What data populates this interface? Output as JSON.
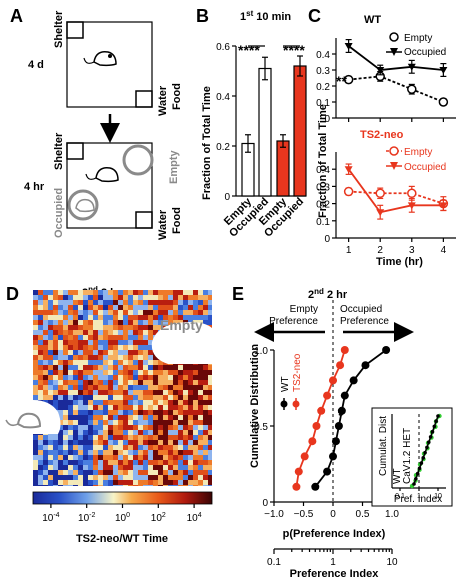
{
  "panels": {
    "A": {
      "letter": "A",
      "top_box": {
        "duration": "4 d",
        "shelter": "Shelter",
        "water": "Water",
        "food": "Food"
      },
      "bottom_box": {
        "duration": "4 hr",
        "shelter": "Shelter",
        "water": "Water",
        "food": "Food",
        "empty": "Empty",
        "occupied": "Occupied"
      }
    },
    "B": {
      "letter": "B",
      "title_prefix": "1",
      "title_sup": "st",
      "title_suffix": " 10 min",
      "sig1": "****",
      "sig2": "****"
    },
    "C": {
      "letter": "C",
      "wt_title": "WT",
      "neo_title": "TS2-neo",
      "wt_legend": [
        "Empty",
        "Occupied"
      ],
      "neo_legend": [
        "Empty",
        "Occupied"
      ],
      "sig": "**",
      "ylabel": "Fraction of Total Time",
      "xlabel": "Time (hr)"
    },
    "D": {
      "letter": "D",
      "title_prefix": "2",
      "title_sup": "nd",
      "title_suffix": " 2 hr",
      "empty_label": "Empty",
      "colorbar_title": "TS2-neo/WT Time",
      "colorbar_ticks": [
        {
          "base": "10",
          "exp": "-4"
        },
        {
          "base": "10",
          "exp": "-2"
        },
        {
          "base": "10",
          "exp": "0"
        },
        {
          "base": "10",
          "exp": "2"
        },
        {
          "base": "10",
          "exp": "4"
        }
      ]
    },
    "E": {
      "letter": "E",
      "title_prefix": "2",
      "title_sup": "nd",
      "title_suffix": " 2 hr",
      "left_pref": [
        "Empty",
        "Preference"
      ],
      "right_pref": [
        "Occupied",
        "Preference"
      ],
      "legend": [
        "WT",
        "TS2-neo"
      ],
      "sig": "*",
      "ylabel": "Cumulative Distribution",
      "xlabel": "p(Preference Index)",
      "xlabel2": "Preference Index",
      "inset": {
        "ylabel": "Cumulat. Dist",
        "xlabel": "Pref. Index",
        "legend": [
          "WT",
          "CaV1.2 HET"
        ],
        "xticks": [
          "0.1",
          "1",
          "10"
        ]
      }
    }
  },
  "colors": {
    "wt": "#000000",
    "ts2neo": "#e8361e",
    "het": "#33cc33",
    "grey": "#8a8a8a"
  },
  "chart_data": [
    {
      "panel": "B",
      "type": "bar",
      "categories": [
        "Empty",
        "Occupied",
        "Empty",
        "Occupied"
      ],
      "values": [
        0.21,
        0.51,
        0.22,
        0.52
      ],
      "errors": [
        0.035,
        0.045,
        0.025,
        0.04
      ],
      "fills": [
        "#ffffff",
        "#ffffff",
        "#e8361e",
        "#e8361e"
      ],
      "ylabel": "Fraction of Total Time",
      "ylim": [
        0,
        0.6
      ],
      "yticks": [
        0,
        0.2,
        0.4,
        0.6
      ],
      "ytick_labels": [
        "0",
        "0.2",
        "0.4",
        "0.6"
      ]
    },
    {
      "panel": "C-top",
      "type": "line",
      "title": "WT",
      "x": [
        1,
        2,
        3,
        4
      ],
      "ylim": [
        0,
        0.5
      ],
      "yticks": [
        0,
        0.1,
        0.2,
        0.3,
        0.4
      ],
      "ytick_labels": [
        "0",
        "0.1",
        "0.2",
        "0.3",
        "0.4"
      ],
      "series": [
        {
          "name": "Empty",
          "values": [
            0.24,
            0.26,
            0.18,
            0.1
          ],
          "errors": [
            0.02,
            0.03,
            0.03,
            0.02
          ],
          "marker": "open-circle",
          "dashed": true
        },
        {
          "name": "Occupied",
          "values": [
            0.45,
            0.3,
            0.32,
            0.3
          ],
          "errors": [
            0.04,
            0.03,
            0.04,
            0.04
          ],
          "marker": "filled-triangle",
          "dashed": false
        }
      ]
    },
    {
      "panel": "C-bottom",
      "type": "line",
      "title": "TS2-neo",
      "x": [
        1,
        2,
        3,
        4
      ],
      "ylim": [
        0,
        0.5
      ],
      "yticks": [
        0,
        0.1,
        0.2,
        0.3,
        0.4
      ],
      "ytick_labels": [
        "0",
        "0.1",
        "0.2",
        "0.3",
        "0.4"
      ],
      "xticks": [
        1,
        2,
        3,
        4
      ],
      "xlabel": "Time (hr)",
      "series": [
        {
          "name": "Empty",
          "values": [
            0.27,
            0.26,
            0.26,
            0.2
          ],
          "errors": [
            0.02,
            0.03,
            0.04,
            0.04
          ],
          "marker": "open-circle",
          "dashed": true
        },
        {
          "name": "Occupied",
          "values": [
            0.4,
            0.15,
            0.19,
            0.19
          ],
          "errors": [
            0.03,
            0.04,
            0.04,
            0.03
          ],
          "marker": "filled-triangle",
          "dashed": false
        }
      ]
    },
    {
      "panel": "E",
      "type": "line",
      "xlim": [
        -1,
        1
      ],
      "ylim": [
        0,
        1
      ],
      "xticks": [
        -1,
        -0.5,
        0,
        0.5,
        1
      ],
      "xtick_labels": [
        "−1.0",
        "−0.5",
        "0",
        "0.5",
        "1.0"
      ],
      "yticks": [
        0,
        0.5,
        1
      ],
      "ytick_labels": [
        "0",
        "0.5",
        "1.0"
      ],
      "x2ticks": [
        "0.1",
        "1",
        "10"
      ],
      "series": [
        {
          "name": "WT",
          "x": [
            -0.3,
            -0.1,
            0,
            0.05,
            0.1,
            0.15,
            0.2,
            0.35,
            0.55,
            0.9
          ],
          "y": [
            0.1,
            0.2,
            0.3,
            0.4,
            0.5,
            0.6,
            0.7,
            0.8,
            0.9,
            1.0
          ]
        },
        {
          "name": "TS2-neo",
          "x": [
            -0.62,
            -0.58,
            -0.48,
            -0.35,
            -0.28,
            -0.2,
            -0.1,
            0,
            0.12,
            0.2
          ],
          "y": [
            0.1,
            0.2,
            0.3,
            0.4,
            0.5,
            0.6,
            0.7,
            0.8,
            0.9,
            1.0
          ]
        }
      ]
    }
  ]
}
